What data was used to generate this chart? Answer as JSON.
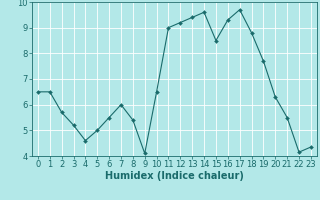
{
  "xlabel": "Humidex (Indice chaleur)",
  "x": [
    0,
    1,
    2,
    3,
    4,
    5,
    6,
    7,
    8,
    9,
    10,
    11,
    12,
    13,
    14,
    15,
    16,
    17,
    18,
    19,
    20,
    21,
    22,
    23
  ],
  "y": [
    6.5,
    6.5,
    5.7,
    5.2,
    4.6,
    5.0,
    5.5,
    6.0,
    5.4,
    4.1,
    6.5,
    9.0,
    9.2,
    9.4,
    9.6,
    8.5,
    9.3,
    9.7,
    8.8,
    7.7,
    6.3,
    5.5,
    4.15,
    4.35
  ],
  "line_color": "#1a6b6b",
  "marker": "D",
  "marker_size": 2,
  "bg_color": "#b3e8e8",
  "grid_color": "#ffffff",
  "axis_color": "#1a6b6b",
  "tick_color": "#1a6b6b",
  "label_color": "#1a6b6b",
  "ylim": [
    4,
    10
  ],
  "xlim": [
    -0.5,
    23.5
  ],
  "yticks": [
    4,
    5,
    6,
    7,
    8,
    9,
    10
  ],
  "xticks": [
    0,
    1,
    2,
    3,
    4,
    5,
    6,
    7,
    8,
    9,
    10,
    11,
    12,
    13,
    14,
    15,
    16,
    17,
    18,
    19,
    20,
    21,
    22,
    23
  ],
  "xlabel_fontsize": 7,
  "tick_fontsize": 6
}
